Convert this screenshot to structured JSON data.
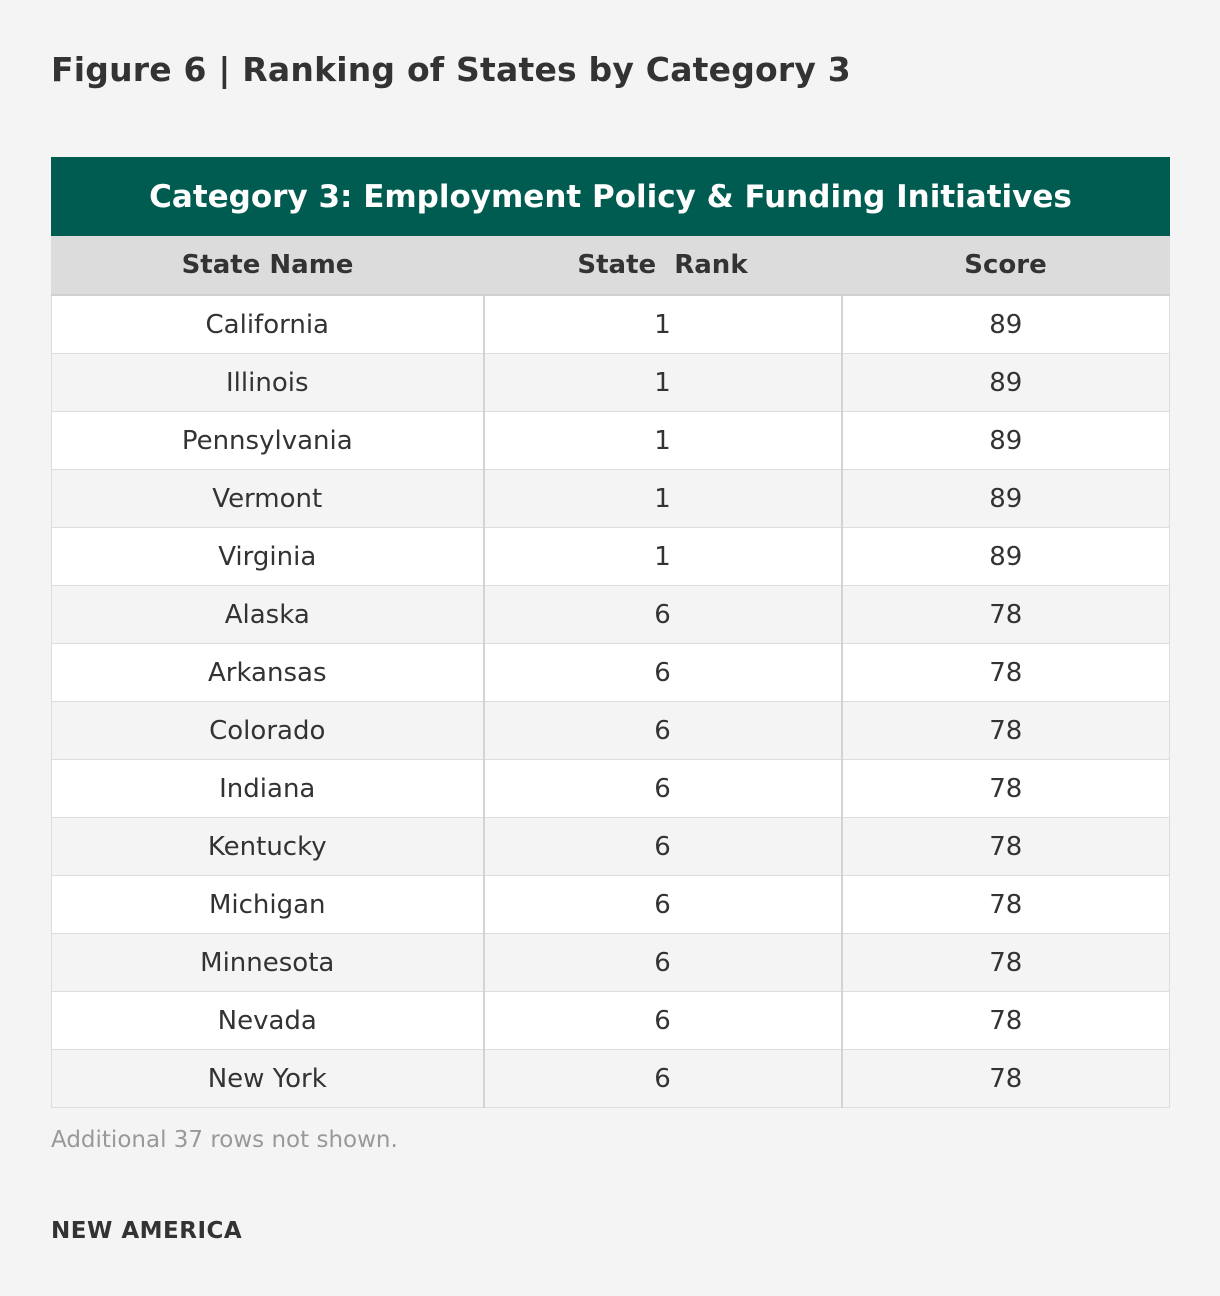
{
  "figure": {
    "title": "Figure 6 | Ranking of States by Category 3",
    "note": "Additional 37 rows not shown.",
    "brand": "NEW AMERICA"
  },
  "table": {
    "banner": "Category 3: Employment Policy & Funding Initiatives",
    "columns": [
      "State Name",
      "State  Rank",
      "Score"
    ],
    "rows": [
      [
        "California",
        "1",
        "89"
      ],
      [
        "Illinois",
        "1",
        "89"
      ],
      [
        "Pennsylvania",
        "1",
        "89"
      ],
      [
        "Vermont",
        "1",
        "89"
      ],
      [
        "Virginia",
        "1",
        "89"
      ],
      [
        "Alaska",
        "6",
        "78"
      ],
      [
        "Arkansas",
        "6",
        "78"
      ],
      [
        "Colorado",
        "6",
        "78"
      ],
      [
        "Indiana",
        "6",
        "78"
      ],
      [
        "Kentucky",
        "6",
        "78"
      ],
      [
        "Michigan",
        "6",
        "78"
      ],
      [
        "Minnesota",
        "6",
        "78"
      ],
      [
        "Nevada",
        "6",
        "78"
      ],
      [
        "New York",
        "6",
        "78"
      ]
    ]
  },
  "colors": {
    "banner_bg": "#005c50",
    "header_bg": "#dcdcdc",
    "page_bg": "#f4f4f4"
  }
}
